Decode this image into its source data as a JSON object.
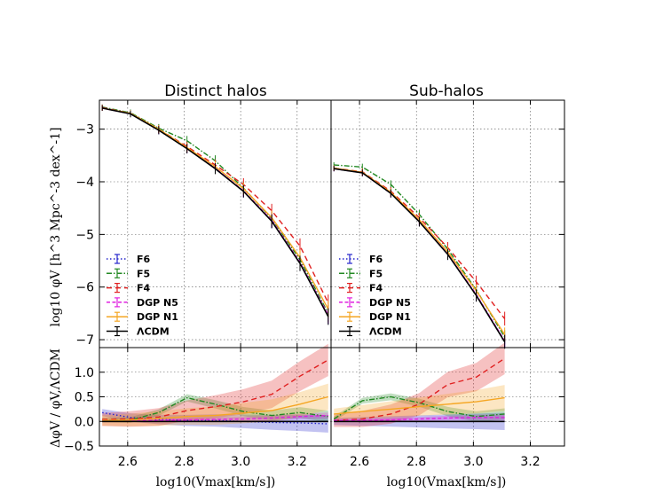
{
  "chart_data": {
    "type": "line",
    "titles": [
      "Distinct halos",
      "Sub-halos"
    ],
    "xlabel": "log10(Vmax[km/s])",
    "ylabel_top": "log10 φV [h^3 Mpc^-3 dex^-1]",
    "ylabel_bottom": "ΔφV / φV,ΛCDM",
    "xlim": [
      2.5,
      3.32
    ],
    "ylim_top": [
      -7.15,
      -2.45
    ],
    "ylim_bottom": [
      -0.5,
      1.5
    ],
    "x_ticks": [
      "2.6",
      "2.8",
      "3.0",
      "3.2"
    ],
    "y_ticks_top": [
      "−3",
      "−4",
      "−5",
      "−6",
      "−7"
    ],
    "y_ticks_bottom": [
      "−0.5",
      "0.0",
      "0.5",
      "1.0"
    ],
    "legend": [
      "F6",
      "F5",
      "F4",
      "DGP N5",
      "DGP N1",
      "ΛCDM"
    ],
    "series_styles": [
      {
        "name": "F6",
        "color": "#2424cc",
        "dash": "1.5 2.5"
      },
      {
        "name": "F5",
        "color": "#228822",
        "dash": "6 2 1.5 2"
      },
      {
        "name": "F4",
        "color": "#e02020",
        "dash": "6 4"
      },
      {
        "name": "DGP N5",
        "color": "#e020e0",
        "dash": "4 2.5"
      },
      {
        "name": "DGP N1",
        "color": "#f5a623",
        "dash": ""
      },
      {
        "name": "ΛCDM",
        "color": "#000000",
        "dash": ""
      }
    ],
    "panels": [
      {
        "name": "Distinct halos",
        "x": [
          2.51,
          2.61,
          2.71,
          2.81,
          2.91,
          3.01,
          3.11,
          3.21,
          3.31
        ],
        "series": [
          {
            "name": "F6",
            "values": [
              -2.6,
              -2.7,
              -3.02,
              -3.37,
              -3.74,
              -4.18,
              -4.75,
              -5.55,
              -6.55
            ]
          },
          {
            "name": "F5",
            "values": [
              -2.58,
              -2.69,
              -2.98,
              -3.22,
              -3.6,
              -4.12,
              -4.7,
              -5.48,
              -6.5
            ]
          },
          {
            "name": "F4",
            "values": [
              -2.59,
              -2.7,
              -3.0,
              -3.33,
              -3.68,
              -4.05,
              -4.55,
              -5.22,
              -6.3
            ]
          },
          {
            "name": "DGP N5",
            "values": [
              -2.6,
              -2.71,
              -3.01,
              -3.36,
              -3.74,
              -4.17,
              -4.73,
              -5.53,
              -6.53
            ]
          },
          {
            "name": "DGP N1",
            "values": [
              -2.6,
              -2.7,
              -3.0,
              -3.35,
              -3.71,
              -4.13,
              -4.68,
              -5.44,
              -6.42
            ]
          },
          {
            "name": "ΛCDM",
            "values": [
              -2.6,
              -2.71,
              -3.02,
              -3.37,
              -3.75,
              -4.18,
              -4.75,
              -5.55,
              -6.56
            ]
          }
        ],
        "ratio_series": [
          {
            "name": "F6",
            "values": [
              0.18,
              0.08,
              0.04,
              0.02,
              0.02,
              0.0,
              -0.02,
              -0.03,
              -0.05
            ]
          },
          {
            "name": "F5",
            "values": [
              0.03,
              0.03,
              0.18,
              0.48,
              0.35,
              0.2,
              0.12,
              0.18,
              0.1
            ]
          },
          {
            "name": "F4",
            "values": [
              0.04,
              0.05,
              0.09,
              0.22,
              0.3,
              0.4,
              0.55,
              0.92,
              1.25
            ]
          },
          {
            "name": "DGP N5",
            "values": [
              0.02,
              0.02,
              0.02,
              0.03,
              0.04,
              0.05,
              0.07,
              0.1,
              0.12
            ]
          },
          {
            "name": "DGP N1",
            "values": [
              0.02,
              0.03,
              0.06,
              0.1,
              0.12,
              0.17,
              0.22,
              0.35,
              0.5
            ]
          },
          {
            "name": "ΛCDM",
            "values": [
              0.0,
              0.0,
              0.0,
              0.0,
              0.0,
              0.0,
              0.0,
              0.0,
              0.0
            ]
          }
        ]
      },
      {
        "name": "Sub-halos",
        "x": [
          2.51,
          2.61,
          2.71,
          2.81,
          2.91,
          3.01,
          3.11
        ],
        "series": [
          {
            "name": "F6",
            "values": [
              -3.75,
              -3.83,
              -4.22,
              -4.75,
              -5.38,
              -6.15,
              -7.03
            ]
          },
          {
            "name": "F5",
            "values": [
              -3.68,
              -3.72,
              -4.05,
              -4.62,
              -5.28,
              -6.05,
              -6.95
            ]
          },
          {
            "name": "F4",
            "values": [
              -3.74,
              -3.81,
              -4.18,
              -4.68,
              -5.25,
              -5.9,
              -6.6
            ]
          },
          {
            "name": "DGP N5",
            "values": [
              -3.75,
              -3.83,
              -4.22,
              -4.74,
              -5.37,
              -6.14,
              -7.02
            ]
          },
          {
            "name": "DGP N1",
            "values": [
              -3.74,
              -3.82,
              -4.2,
              -4.72,
              -5.33,
              -6.07,
              -6.9
            ]
          },
          {
            "name": "ΛCDM",
            "values": [
              -3.75,
              -3.83,
              -4.22,
              -4.76,
              -5.38,
              -6.16,
              -7.04
            ]
          }
        ],
        "ratio_series": [
          {
            "name": "F6",
            "values": [
              0.0,
              0.0,
              0.0,
              0.0,
              0.0,
              0.0,
              0.0
            ]
          },
          {
            "name": "F5",
            "values": [
              0.05,
              0.42,
              0.5,
              0.38,
              0.2,
              0.1,
              0.15
            ]
          },
          {
            "name": "F4",
            "values": [
              0.02,
              0.05,
              0.15,
              0.35,
              0.75,
              0.9,
              1.28
            ]
          },
          {
            "name": "DGP N5",
            "values": [
              0.02,
              0.02,
              0.03,
              0.05,
              0.07,
              0.08,
              0.08
            ]
          },
          {
            "name": "DGP N1",
            "values": [
              0.15,
              0.2,
              0.25,
              0.3,
              0.35,
              0.4,
              0.48
            ]
          },
          {
            "name": "ΛCDM",
            "values": [
              0.0,
              0.0,
              0.0,
              0.0,
              0.0,
              0.0,
              0.0
            ]
          }
        ]
      }
    ]
  }
}
